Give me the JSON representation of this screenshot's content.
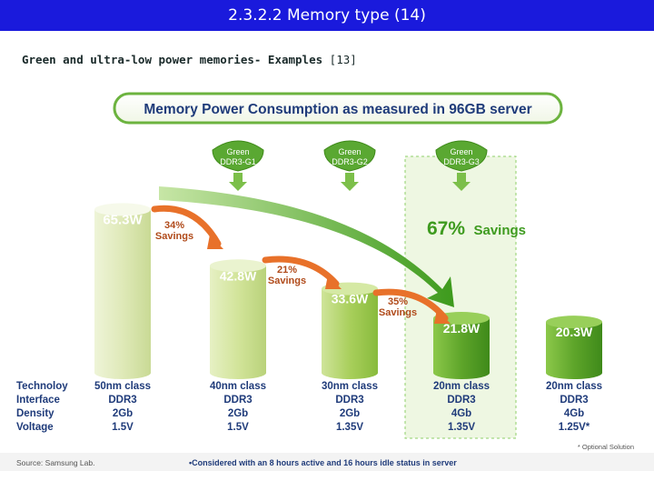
{
  "slide": {
    "title": "2.3.2.2 Memory type (14)",
    "subtitle_bold": "Green and ultra-low power memories- Examples",
    "subtitle_ref": "[13]"
  },
  "chart_data": {
    "type": "bar",
    "title": "Memory Power Consumption as measured in 96GB server",
    "categories": [
      "50nm class",
      "40nm class",
      "30nm class",
      "20nm class",
      "20nm class"
    ],
    "values": [
      65.3,
      42.8,
      33.6,
      21.8,
      20.3
    ],
    "value_labels": [
      "65.3W",
      "42.8W",
      "33.6W",
      "21.8W",
      "20.3W"
    ],
    "row_headers": [
      "Technoloy",
      "Interface",
      "Density",
      "Voltage"
    ],
    "specs": [
      [
        "50nm class",
        "DDR3",
        "2Gb",
        "1.5V"
      ],
      [
        "40nm class",
        "DDR3",
        "2Gb",
        "1.5V"
      ],
      [
        "30nm class",
        "DDR3",
        "2Gb",
        "1.35V"
      ],
      [
        "20nm class",
        "DDR3",
        "4Gb",
        "1.35V"
      ],
      [
        "20nm class",
        "DDR3",
        "4Gb",
        "1.25V*"
      ]
    ],
    "badges": [
      {
        "line1": "Green",
        "line2": "DDR3-G1"
      },
      {
        "line1": "Green",
        "line2": "DDR3-G2"
      },
      {
        "line1": "Green",
        "line2": "DDR3-G3"
      }
    ],
    "savings": [
      {
        "pct": "34%",
        "word": "Savings"
      },
      {
        "pct": "21%",
        "word": "Savings"
      },
      {
        "pct": "35%",
        "word": "Savings"
      }
    ],
    "big_savings": {
      "pct": "67%",
      "word": "Savings"
    },
    "source": "Source:  Samsung Lab.",
    "footnote": "•Considered with an 8 hours active and 16 hours idle status in server",
    "optional_note": "* Optional Solution",
    "colors": {
      "bar_light": "#dde8b6",
      "bar_mid": "#b8d878",
      "bar_dark": "#6fb02e",
      "title_border": "#6cb33f",
      "arrow": "#e8712a",
      "big_arrow": "#3e9b1f"
    }
  }
}
